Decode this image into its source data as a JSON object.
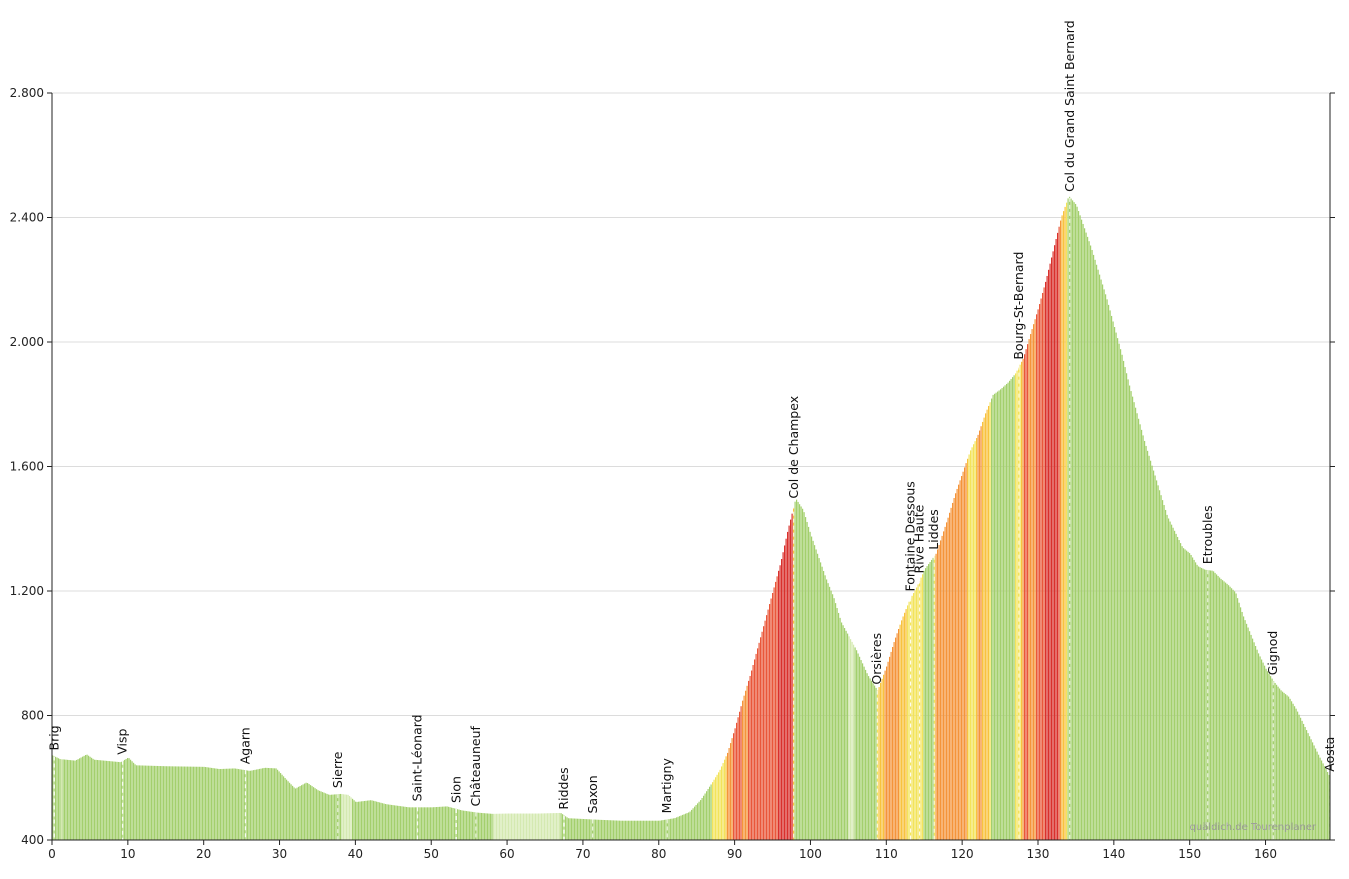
{
  "chart_data": {
    "type": "area",
    "title": "",
    "xlabel": "",
    "ylabel": "",
    "xlim": [
      0,
      168.5
    ],
    "ylim": [
      400,
      2800
    ],
    "x_ticks": [
      0,
      10,
      20,
      30,
      40,
      50,
      60,
      70,
      80,
      90,
      100,
      110,
      120,
      130,
      140,
      150,
      160
    ],
    "y_ticks": [
      400,
      800,
      1200,
      1600,
      2000,
      2400,
      2800
    ],
    "x_tick_labels": [
      "0",
      "10",
      "20",
      "30",
      "40",
      "50",
      "60",
      "70",
      "80",
      "90",
      "100",
      "110",
      "120",
      "130",
      "140",
      "150",
      "160"
    ],
    "y_tick_labels": [
      "400",
      "800",
      "1.200",
      "1.600",
      "2.000",
      "2.400",
      "2.800"
    ],
    "grid": true,
    "watermark": "quäldich.de Tourenplaner",
    "profile": [
      [
        0,
        672
      ],
      [
        1,
        660
      ],
      [
        3,
        655
      ],
      [
        4.5,
        675
      ],
      [
        5.5,
        658
      ],
      [
        9,
        650
      ],
      [
        10,
        665
      ],
      [
        11,
        640
      ],
      [
        15,
        637
      ],
      [
        20,
        635
      ],
      [
        22,
        628
      ],
      [
        24,
        630
      ],
      [
        26,
        622
      ],
      [
        28,
        632
      ],
      [
        29.5,
        630
      ],
      [
        31,
        590
      ],
      [
        32,
        565
      ],
      [
        33.5,
        585
      ],
      [
        35,
        560
      ],
      [
        36.5,
        545
      ],
      [
        38,
        548
      ],
      [
        39,
        545
      ],
      [
        40,
        522
      ],
      [
        42,
        528
      ],
      [
        44,
        515
      ],
      [
        47,
        505
      ],
      [
        50,
        505
      ],
      [
        52,
        508
      ],
      [
        54,
        495
      ],
      [
        56,
        488
      ],
      [
        58,
        484
      ],
      [
        60,
        485
      ],
      [
        64,
        485
      ],
      [
        67,
        487
      ],
      [
        68,
        470
      ],
      [
        72,
        465
      ],
      [
        75,
        462
      ],
      [
        80,
        462
      ],
      [
        82,
        470
      ],
      [
        84,
        490
      ],
      [
        85.5,
        530
      ],
      [
        87,
        585
      ],
      [
        88,
        625
      ],
      [
        89,
        680
      ],
      [
        90,
        760
      ],
      [
        91,
        850
      ],
      [
        92,
        930
      ],
      [
        93,
        1020
      ],
      [
        94,
        1110
      ],
      [
        95,
        1200
      ],
      [
        96,
        1290
      ],
      [
        97,
        1400
      ],
      [
        98,
        1497
      ],
      [
        99,
        1460
      ],
      [
        100,
        1380
      ],
      [
        101,
        1310
      ],
      [
        102,
        1240
      ],
      [
        103,
        1180
      ],
      [
        104,
        1100
      ],
      [
        106,
        1010
      ],
      [
        107.5,
        930
      ],
      [
        108.8,
        880
      ],
      [
        110,
        960
      ],
      [
        111,
        1040
      ],
      [
        112,
        1110
      ],
      [
        113,
        1170
      ],
      [
        114,
        1215
      ],
      [
        115,
        1270
      ],
      [
        116.5,
        1320
      ],
      [
        118,
        1430
      ],
      [
        119,
        1510
      ],
      [
        120,
        1580
      ],
      [
        121,
        1650
      ],
      [
        122,
        1700
      ],
      [
        123,
        1770
      ],
      [
        124,
        1830
      ],
      [
        125,
        1848
      ],
      [
        126,
        1870
      ],
      [
        127,
        1900
      ],
      [
        128,
        1948
      ],
      [
        129,
        2030
      ],
      [
        130,
        2110
      ],
      [
        131,
        2200
      ],
      [
        132,
        2300
      ],
      [
        133,
        2400
      ],
      [
        134,
        2469
      ],
      [
        135,
        2440
      ],
      [
        136,
        2370
      ],
      [
        137,
        2300
      ],
      [
        138,
        2220
      ],
      [
        139,
        2140
      ],
      [
        140,
        2050
      ],
      [
        141,
        1960
      ],
      [
        142,
        1860
      ],
      [
        143,
        1770
      ],
      [
        144,
        1680
      ],
      [
        145,
        1600
      ],
      [
        146,
        1520
      ],
      [
        147,
        1440
      ],
      [
        148,
        1390
      ],
      [
        149,
        1340
      ],
      [
        150,
        1320
      ],
      [
        151,
        1280
      ],
      [
        152,
        1268
      ],
      [
        153,
        1265
      ],
      [
        154,
        1240
      ],
      [
        155,
        1220
      ],
      [
        156,
        1195
      ],
      [
        157,
        1120
      ],
      [
        158,
        1060
      ],
      [
        159,
        1000
      ],
      [
        160,
        950
      ],
      [
        161,
        910
      ],
      [
        162,
        880
      ],
      [
        163,
        860
      ],
      [
        164,
        820
      ],
      [
        165,
        770
      ],
      [
        166,
        720
      ],
      [
        167,
        670
      ],
      [
        168.5,
        600
      ]
    ],
    "gradient_colors": [
      "#a3cf6d",
      "#d4e9b1",
      "#f3e35a",
      "#f8c23e",
      "#f4943a",
      "#e9573a",
      "#d9302c"
    ],
    "places": [
      {
        "name": "Brig",
        "km": 0.3
      },
      {
        "name": "Visp",
        "km": 9.3
      },
      {
        "name": "Agarn",
        "km": 25.5
      },
      {
        "name": "Sierre",
        "km": 37.7
      },
      {
        "name": "Saint-Léonard",
        "km": 48.2
      },
      {
        "name": "Sion",
        "km": 53.3
      },
      {
        "name": "Châteauneuf",
        "km": 55.9
      },
      {
        "name": "Riddes",
        "km": 67.5
      },
      {
        "name": "Saxon",
        "km": 71.3
      },
      {
        "name": "Martigny",
        "km": 81.1
      },
      {
        "name": "Col de Champex",
        "km": 97.8
      },
      {
        "name": "Orsières",
        "km": 108.8
      },
      {
        "name": "Fontaine Dessous",
        "km": 113.2
      },
      {
        "name": "Rive Haute",
        "km": 114.4
      },
      {
        "name": "Liddes",
        "km": 116.3
      },
      {
        "name": "Bourg-St-Bernard",
        "km": 127.5
      },
      {
        "name": "Col du Grand Saint Bernard",
        "km": 134.2
      },
      {
        "name": "Etroubles",
        "km": 152.4
      },
      {
        "name": "Gignod",
        "km": 161.0
      },
      {
        "name": "Aosta",
        "km": 168.5
      }
    ]
  }
}
